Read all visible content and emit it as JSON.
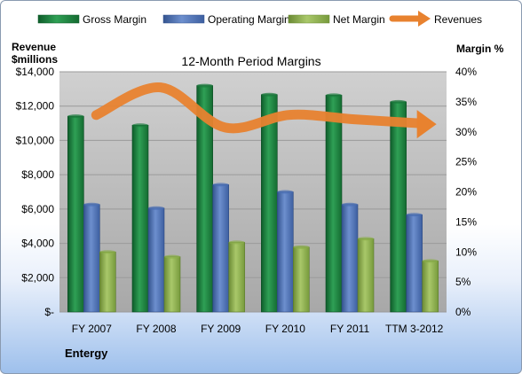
{
  "chart_data": {
    "type": "bar",
    "title": "12-Month Period Margins",
    "company": "Entergy",
    "ylabel_left": [
      "Revenue",
      "$millions"
    ],
    "ylabel_right": "Margin %",
    "categories": [
      "FY 2007",
      "FY 2008",
      "FY 2009",
      "FY 2010",
      "FY 2011",
      "TTM 3-2012"
    ],
    "ylim_left": [
      0,
      14000
    ],
    "ylim_right": [
      0,
      40
    ],
    "yticks_left": [
      "$-",
      "$2,000",
      "$4,000",
      "$6,000",
      "$8,000",
      "$10,000",
      "$12,000",
      "$14,000"
    ],
    "yticks_right": [
      "0%",
      "5%",
      "10%",
      "15%",
      "20%",
      "25%",
      "30%",
      "35%",
      "40%"
    ],
    "grid": true,
    "legend_position": "top",
    "series": [
      {
        "name": "Gross Margin",
        "axis": "right",
        "kind": "bar",
        "color": "#1a7a3c",
        "values": [
          32.6,
          31.1,
          37.7,
          36.2,
          36.1,
          35.0
        ]
      },
      {
        "name": "Operating Margin",
        "axis": "right",
        "kind": "bar",
        "color": "#4a6fb5",
        "values": [
          17.9,
          17.3,
          21.2,
          20.0,
          17.9,
          16.2
        ]
      },
      {
        "name": "Net Margin",
        "axis": "right",
        "kind": "bar",
        "color": "#8aae4a",
        "values": [
          10.0,
          9.2,
          11.6,
          10.8,
          12.2,
          8.5
        ]
      },
      {
        "name": "Revenues",
        "axis": "left",
        "kind": "line",
        "color": "#e8822f",
        "values": [
          11480,
          13090,
          10750,
          11490,
          11230,
          11000
        ]
      }
    ]
  }
}
